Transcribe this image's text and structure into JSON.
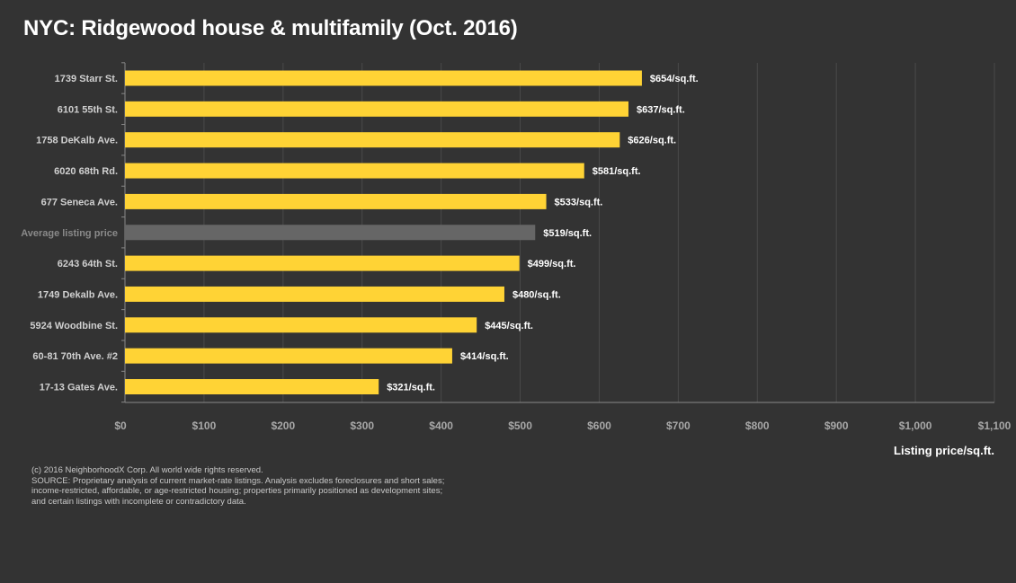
{
  "title": "NYC: Ridgewood house & multifamily (Oct. 2016)",
  "colors": {
    "background": "#333333",
    "bar": "#FFD335",
    "highlight_bar": "#666666",
    "gridline": "#4a4a4a",
    "tick_text": "#a8a8a8",
    "category_text": "#d0d0d0",
    "highlight_text": "#8a8a8a"
  },
  "chart_data": {
    "type": "bar",
    "orientation": "horizontal",
    "categories": [
      "1739 Starr St.",
      "6101 55th St.",
      "1758 DeKalb Ave.",
      "6020 68th Rd.",
      "677 Seneca Ave.",
      "Average listing price",
      "6243 64th St.",
      "1749 Dekalb Ave.",
      "5924 Woodbine St.",
      "60-81 70th Ave. #2",
      "17-13 Gates Ave."
    ],
    "values": [
      654,
      637,
      626,
      581,
      533,
      519,
      499,
      480,
      445,
      414,
      321
    ],
    "value_labels": [
      "$654/sq.ft.",
      "$637/sq.ft.",
      "$626/sq.ft.",
      "$581/sq.ft.",
      "$533/sq.ft.",
      "$519/sq.ft.",
      "$499/sq.ft.",
      "$480/sq.ft.",
      "$445/sq.ft.",
      "$414/sq.ft.",
      "$321/sq.ft."
    ],
    "highlighted_category": "Average listing price",
    "xlim": [
      0,
      1100
    ],
    "xticks": [
      0,
      100,
      200,
      300,
      400,
      500,
      600,
      700,
      800,
      900,
      1000,
      1100
    ],
    "xtick_labels": [
      "$0",
      "$100",
      "$200",
      "$300",
      "$400",
      "$500",
      "$600",
      "$700",
      "$800",
      "$900",
      "$1,000",
      "$1,100"
    ],
    "xlabel": "Listing price/sq.ft.",
    "ylabel": "",
    "grid": "vertical"
  },
  "footer": {
    "lines": [
      "(c) 2016 NeighborhoodX Corp. All world wide rights reserved.",
      "SOURCE: Proprietary analysis of current market-rate listings. Analysis excludes foreclosures and short sales;",
      "income-restricted, affordable, or age-restricted housing; properties primarily positioned as development sites;",
      "and certain listings with incomplete or contradictory data."
    ]
  }
}
